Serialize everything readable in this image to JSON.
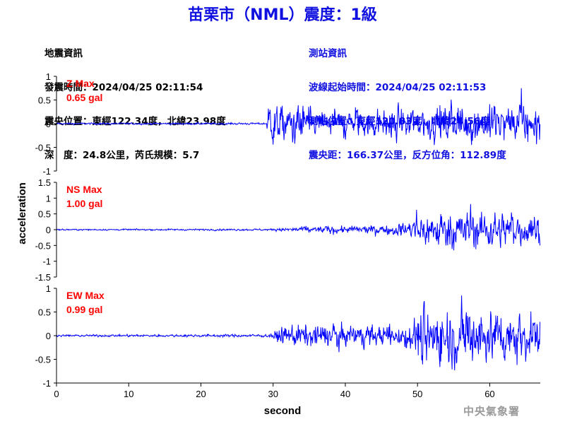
{
  "header": {
    "title": "苗栗市（NML）震度：1級",
    "quake_info": [
      "地震資訊",
      "發震時間：2024/04/25 02:11:54",
      "震央位置：東經122.34度，北緯23.98度",
      "深　度：24.8公里，芮氏規模：5.7"
    ],
    "station_info": [
      "測站資訊",
      "波線起始時間：2024/04/25 02:11:53",
      "測站位置：東經120.83度，北緯24.56度",
      "震央距：166.37公里，反方位角：112.89度"
    ]
  },
  "footer": {
    "agency": "中央氣象署"
  },
  "chart_data": {
    "type": "line",
    "xlabel": "second",
    "ylabel": "acceleration",
    "xlim": [
      0,
      67
    ],
    "xticks": [
      0,
      10,
      20,
      30,
      40,
      50,
      60
    ],
    "line_color": "#0000ff",
    "max_label_color": "#ff0000",
    "panels": [
      {
        "name": "Z",
        "max_label": "Z Max",
        "max_value": "0.65 gal",
        "ylim": [
          -1,
          1
        ],
        "yticks": [
          "1",
          "0.5",
          "0",
          "-0.5",
          "-1"
        ],
        "yvals": [
          1,
          0.5,
          0,
          -0.5,
          -1
        ],
        "onset": 29.2,
        "envelope": [
          [
            0,
            0.02
          ],
          [
            29,
            0.02
          ],
          [
            29.5,
            0.45
          ],
          [
            31,
            0.4
          ],
          [
            36,
            0.3
          ],
          [
            45,
            0.3
          ],
          [
            55,
            0.38
          ],
          [
            67,
            0.35
          ]
        ]
      },
      {
        "name": "NS",
        "max_label": "NS Max",
        "max_value": "1.00 gal",
        "ylim": [
          -1.5,
          1.5
        ],
        "yticks": [
          "1.5",
          "1",
          "0.5",
          "0",
          "-0.5",
          "-1",
          "-1.5"
        ],
        "yvals": [
          1.5,
          1,
          0.5,
          0,
          -0.5,
          -1,
          -1.5
        ],
        "onset": 29.5,
        "envelope": [
          [
            0,
            0.02
          ],
          [
            29.5,
            0.03
          ],
          [
            35,
            0.1
          ],
          [
            45,
            0.12
          ],
          [
            49,
            0.25
          ],
          [
            51,
            0.55
          ],
          [
            58,
            0.6
          ],
          [
            62,
            0.5
          ],
          [
            67,
            0.45
          ]
        ]
      },
      {
        "name": "EW",
        "max_label": "EW Max",
        "max_value": "0.99 gal",
        "ylim": [
          -1,
          1
        ],
        "yticks": [
          "1",
          "0.5",
          "0",
          "-0.5",
          "-1"
        ],
        "yvals": [
          1,
          0.5,
          0,
          -0.5,
          -1
        ],
        "onset": 29.3,
        "envelope": [
          [
            0,
            0.02
          ],
          [
            29.3,
            0.03
          ],
          [
            31,
            0.15
          ],
          [
            33,
            0.25
          ],
          [
            45,
            0.2
          ],
          [
            49,
            0.3
          ],
          [
            51,
            0.65
          ],
          [
            56,
            0.6
          ],
          [
            62,
            0.55
          ],
          [
            67,
            0.4
          ]
        ]
      }
    ]
  }
}
